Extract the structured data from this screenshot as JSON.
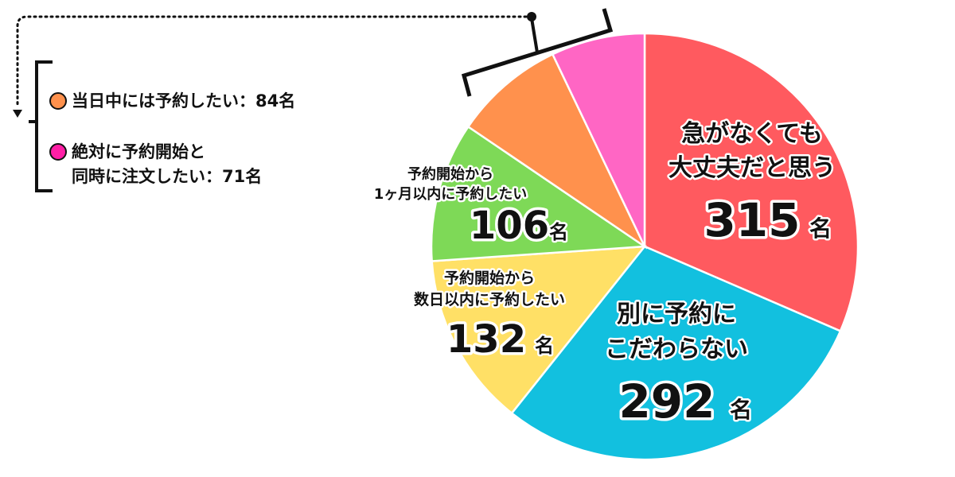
{
  "chart_data": {
    "type": "pie",
    "total_unit": "名",
    "slices": [
      {
        "label_lines": [
          "急がなくても",
          "大丈夫だと思う"
        ],
        "value": 315,
        "color": "#ff5a5f"
      },
      {
        "label_lines": [
          "別に予約に",
          "こだわらない"
        ],
        "value": 292,
        "color": "#12c0df"
      },
      {
        "label_lines": [
          "予約開始から",
          "数日以内に予約したい"
        ],
        "value": 132,
        "color": "#ffe066"
      },
      {
        "label_lines": [
          "予約開始から",
          "1ヶ月以内に予約したい"
        ],
        "value": 106,
        "color": "#7ed957"
      },
      {
        "label_lines": [
          "当日中には予約したい"
        ],
        "value": 84,
        "color": "#ff914d"
      },
      {
        "label_lines": [
          "絶対に予約開始と",
          "同時に注文したい"
        ],
        "value": 71,
        "color": "#ff66c4"
      }
    ],
    "legend": [
      {
        "text_lines": [
          "当日中には予約したい：84名"
        ],
        "color": "#ff914d"
      },
      {
        "text_lines": [
          "絶対に予約開始と",
          "同時に注文したい：71名"
        ],
        "color": "#ff66c4"
      }
    ]
  }
}
